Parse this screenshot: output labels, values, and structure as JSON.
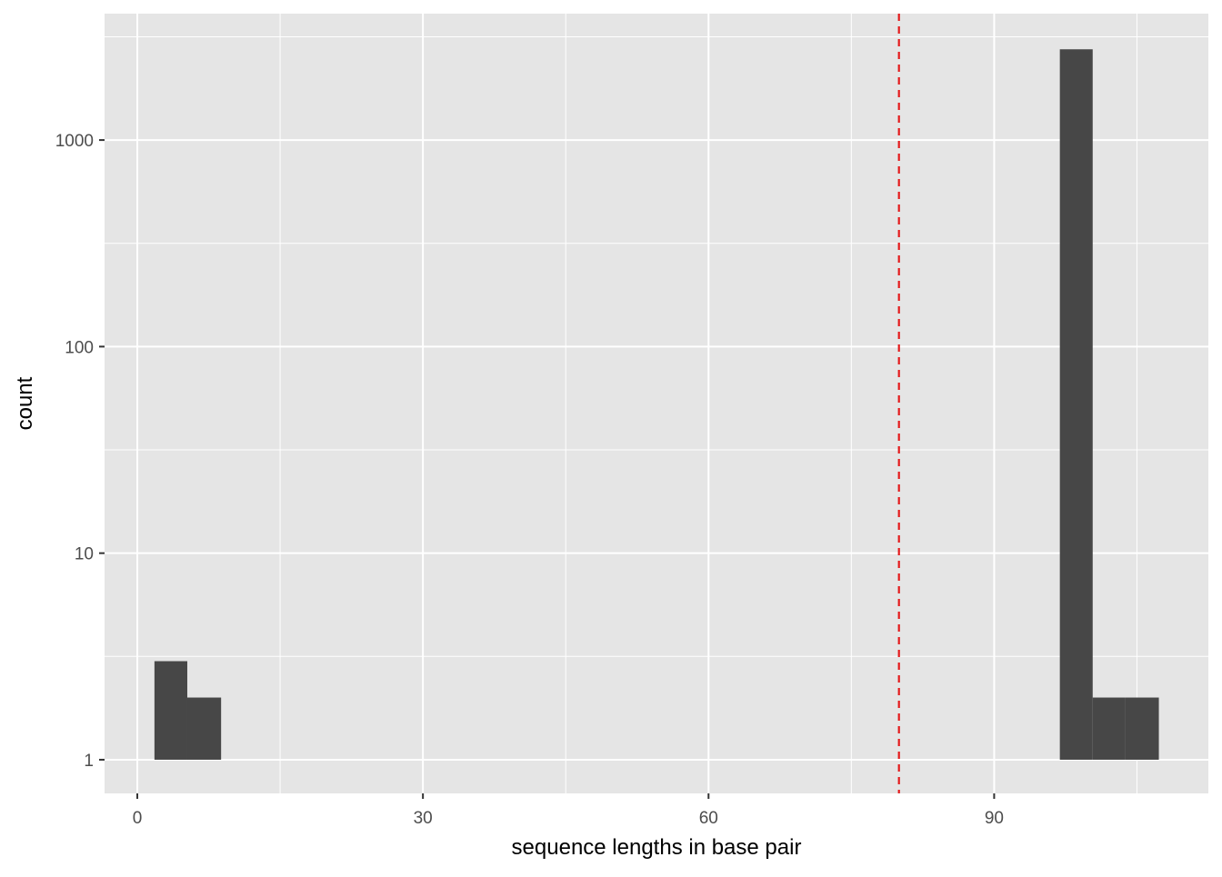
{
  "chart_data": {
    "type": "histogram",
    "title": "",
    "xlabel": "sequence lengths in base pair",
    "ylabel": "count",
    "y_scale": "log10",
    "xlim": [
      -3.44,
      112.5
    ],
    "ylim_log10": [
      -0.163,
      3.612
    ],
    "x_ticks": [
      0,
      30,
      60,
      90
    ],
    "x_tick_labels": [
      "0",
      "30",
      "60",
      "90"
    ],
    "y_ticks": [
      1,
      10,
      100,
      1000
    ],
    "y_tick_labels": [
      "1",
      "10",
      "100",
      "1000"
    ],
    "grid": true,
    "bar_color": "#474747",
    "bins": [
      {
        "x0": 1.8,
        "x1": 5.25,
        "count": 3
      },
      {
        "x0": 5.25,
        "x1": 8.8,
        "count": 2
      },
      {
        "x0": 96.9,
        "x1": 100.35,
        "count": 2750
      },
      {
        "x0": 100.35,
        "x1": 103.8,
        "count": 2
      },
      {
        "x0": 103.8,
        "x1": 107.3,
        "count": 2
      }
    ],
    "reference_line": {
      "x": 80,
      "style": "dashed",
      "color": "#e41a1c"
    }
  }
}
